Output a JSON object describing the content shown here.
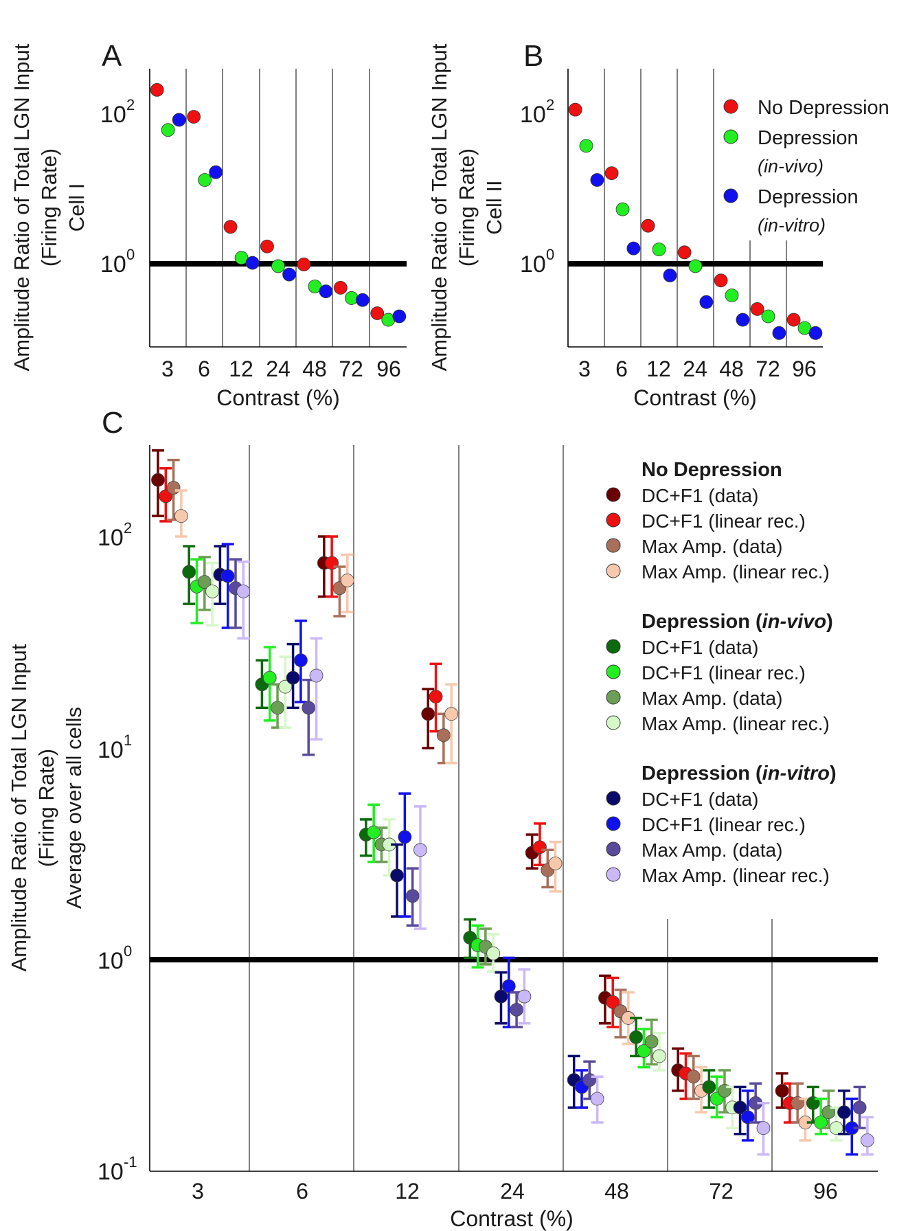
{
  "chart_data": [
    {
      "panel": "A",
      "type": "scatter",
      "ylabel_lines": [
        "Amplitude Ratio of Total LGN Input",
        "(Firing Rate)",
        "Cell I"
      ],
      "xlabel": "Contrast (%)",
      "x_ticks": [
        "3",
        "6",
        "12",
        "24",
        "48",
        "72",
        "96"
      ],
      "y_scale": "log",
      "ylim": [
        0.05,
        200
      ],
      "y_ticks": [
        {
          "exp": "2",
          "value": 100
        },
        {
          "exp": "0",
          "value": 1
        }
      ],
      "reference_line": 1,
      "grid": "vertical separators between contrast groups",
      "series": [
        {
          "name": "No Depression",
          "color": "#ee1111",
          "values": [
            205,
            90,
            3.1,
            1.7,
            0.98,
            0.48,
            0.22
          ]
        },
        {
          "name": "Depression (in-vivo)",
          "color": "#22ee22",
          "values": [
            60,
            13,
            1.2,
            0.93,
            0.5,
            0.35,
            0.18
          ]
        },
        {
          "name": "Depression (in-vitro)",
          "color": "#1111ee",
          "values": [
            82,
            16.5,
            1.03,
            0.72,
            0.43,
            0.33,
            0.2
          ]
        }
      ]
    },
    {
      "panel": "B",
      "type": "scatter",
      "ylabel_lines": [
        "Amplitude Ratio of Total LGN Input",
        "(Firing Rate)",
        "Cell II"
      ],
      "xlabel": "Contrast (%)",
      "x_ticks": [
        "3",
        "6",
        "12",
        "24",
        "48",
        "72",
        "96"
      ],
      "y_scale": "log",
      "ylim": [
        0.05,
        200
      ],
      "y_ticks": [
        {
          "exp": "2",
          "value": 100
        },
        {
          "exp": "0",
          "value": 1
        }
      ],
      "reference_line": 1,
      "grid": "vertical separators between contrast groups",
      "legend": {
        "position": "top-right",
        "entries": [
          {
            "label": "No Depression",
            "color": "#ee1111"
          },
          {
            "label": "Depression",
            "sublabel": "(in-vivo)",
            "color": "#22ee22"
          },
          {
            "label": "Depression",
            "sublabel": "(in-vitro)",
            "color": "#1111ee"
          }
        ]
      },
      "series": [
        {
          "name": "No Depression",
          "color": "#ee1111",
          "values": [
            112,
            16,
            3.2,
            1.42,
            0.6,
            0.25,
            0.18
          ]
        },
        {
          "name": "Depression (in-vivo)",
          "color": "#22ee22",
          "values": [
            37,
            5.3,
            1.55,
            0.93,
            0.38,
            0.2,
            0.14
          ]
        },
        {
          "name": "Depression (in-vitro)",
          "color": "#1111ee",
          "values": [
            13,
            1.6,
            0.7,
            0.31,
            0.18,
            0.12,
            0.12
          ]
        }
      ]
    },
    {
      "panel": "C",
      "type": "scatter",
      "ylabel_lines": [
        "Amplitude Ratio of Total LGN Input",
        "(Firing Rate)",
        "Average over all cells"
      ],
      "xlabel": "Contrast (%)",
      "x_ticks": [
        "3",
        "6",
        "12",
        "24",
        "48",
        "72",
        "96"
      ],
      "y_scale": "log",
      "ylim": [
        0.1,
        300
      ],
      "y_ticks": [
        {
          "exp": "2",
          "value": 100
        },
        {
          "exp": "1",
          "value": 10
        },
        {
          "exp": "0",
          "value": 1
        },
        {
          "exp": "-1",
          "value": 0.1
        }
      ],
      "reference_line": 1,
      "grid": "vertical separators between contrast groups",
      "legend": {
        "position": "top-right",
        "groups": [
          {
            "title": "No Depression",
            "italic": "",
            "items": [
              {
                "label": "DC+F1 (data)",
                "color": "#6a0000"
              },
              {
                "label": "DC+F1 (linear rec.)",
                "color": "#ee1111"
              },
              {
                "label": "Max Amp. (data)",
                "color": "#a8705a"
              },
              {
                "label": "Max Amp. (linear rec.)",
                "color": "#f7c8ac"
              }
            ]
          },
          {
            "title": "Depression (",
            "italic": "in-vivo",
            "close": ")",
            "items": [
              {
                "label": "DC+F1 (data)",
                "color": "#0b6a0b"
              },
              {
                "label": "DC+F1 (linear rec.)",
                "color": "#22ee22"
              },
              {
                "label": "Max Amp. (data)",
                "color": "#6c9e55"
              },
              {
                "label": "Max Amp. (linear rec.)",
                "color": "#d6f7c8"
              }
            ]
          },
          {
            "title": "Depression (",
            "italic": "in-vitro",
            "close": ")",
            "items": [
              {
                "label": "DC+F1 (data)",
                "color": "#0a0a6a"
              },
              {
                "label": "DC+F1 (linear rec.)",
                "color": "#1111ee"
              },
              {
                "label": "Max Amp. (data)",
                "color": "#5a4a9c"
              },
              {
                "label": "Max Amp. (linear rec.)",
                "color": "#cbb8f7"
              }
            ]
          }
        ]
      },
      "series": [
        {
          "name": "No Depression DC+F1 (data)",
          "color": "#6a0000",
          "values": [
            185,
            75,
            14.5,
            3.2,
            0.66,
            0.3,
            0.24
          ],
          "lower": [
            125,
            52,
            10,
            2.7,
            0.5,
            0.24,
            0.2
          ],
          "upper": [
            255,
            100,
            19,
            3.9,
            0.84,
            0.38,
            0.29
          ]
        },
        {
          "name": "No Depression DC+F1 (linear rec.)",
          "color": "#ee1111",
          "values": [
            155,
            75,
            17.5,
            3.4,
            0.63,
            0.29,
            0.21
          ],
          "lower": [
            118,
            52,
            12,
            2.8,
            0.48,
            0.22,
            0.17
          ],
          "upper": [
            210,
            100,
            25,
            4.4,
            0.82,
            0.36,
            0.26
          ]
        },
        {
          "name": "No Depression Max Amp. (data)",
          "color": "#a8705a",
          "values": [
            170,
            57,
            11.5,
            2.65,
            0.57,
            0.28,
            0.21
          ],
          "lower": [
            120,
            42,
            8.5,
            2.2,
            0.43,
            0.22,
            0.17
          ],
          "upper": [
            230,
            72,
            14.5,
            3.3,
            0.72,
            0.35,
            0.26
          ]
        },
        {
          "name": "No Depression Max Amp. (linear rec.)",
          "color": "#f7c8ac",
          "values": [
            125,
            62,
            14.5,
            2.85,
            0.53,
            0.24,
            0.17
          ],
          "lower": [
            100,
            44,
            8.5,
            2.1,
            0.4,
            0.19,
            0.14
          ],
          "upper": [
            165,
            82,
            20,
            3.6,
            0.7,
            0.31,
            0.22
          ]
        },
        {
          "name": "Depression (in-vivo) DC+F1 (data)",
          "color": "#0b6a0b",
          "values": [
            68,
            20,
            3.9,
            1.27,
            0.43,
            0.25,
            0.21
          ],
          "lower": [
            48,
            15.5,
            3.1,
            1.02,
            0.35,
            0.2,
            0.17
          ],
          "upper": [
            90,
            26,
            4.6,
            1.55,
            0.53,
            0.3,
            0.25
          ]
        },
        {
          "name": "Depression (in-vivo) DC+F1 (linear rec.)",
          "color": "#22ee22",
          "values": [
            58,
            21.5,
            4.0,
            1.17,
            0.37,
            0.22,
            0.17
          ],
          "lower": [
            39,
            13.5,
            2.9,
            0.92,
            0.31,
            0.18,
            0.15
          ],
          "upper": [
            78,
            30,
            5.4,
            1.45,
            0.47,
            0.28,
            0.22
          ]
        },
        {
          "name": "Depression (in-vivo) Max Amp. (data)",
          "color": "#6c9e55",
          "values": [
            61,
            15.5,
            3.5,
            1.15,
            0.41,
            0.24,
            0.19
          ],
          "lower": [
            45,
            12.5,
            2.9,
            0.95,
            0.32,
            0.19,
            0.16
          ],
          "upper": [
            80,
            20,
            4.2,
            1.4,
            0.52,
            0.3,
            0.24
          ]
        },
        {
          "name": "Depression (in-vivo) Max Amp. (linear rec.)",
          "color": "#d6f7c8",
          "values": [
            55,
            19.5,
            3.5,
            1.07,
            0.35,
            0.2,
            0.16
          ],
          "lower": [
            38,
            12.5,
            2.5,
            0.88,
            0.3,
            0.16,
            0.14
          ],
          "upper": [
            75,
            27,
            4.6,
            1.32,
            0.45,
            0.25,
            0.2
          ]
        },
        {
          "name": "Depression (in-vitro) DC+F1 (data)",
          "color": "#0a0a6a",
          "values": [
            66,
            21.5,
            2.5,
            0.67,
            0.27,
            0.2,
            0.19
          ],
          "lower": [
            48,
            15.5,
            1.6,
            0.5,
            0.2,
            0.15,
            0.15
          ],
          "upper": [
            90,
            31,
            3.5,
            0.87,
            0.35,
            0.25,
            0.24
          ]
        },
        {
          "name": "Depression (in-vitro) DC+F1 (linear rec.)",
          "color": "#1111ee",
          "values": [
            65,
            26,
            3.8,
            0.75,
            0.25,
            0.18,
            0.16
          ],
          "lower": [
            37,
            16.5,
            1.6,
            0.48,
            0.2,
            0.14,
            0.12
          ],
          "upper": [
            92,
            40,
            6.1,
            1.02,
            0.3,
            0.24,
            0.22
          ]
        },
        {
          "name": "Depression (in-vitro) Max Amp. (data)",
          "color": "#5a4a9c",
          "values": [
            57,
            15.5,
            2.0,
            0.58,
            0.27,
            0.21,
            0.2
          ],
          "lower": [
            37,
            9.3,
            1.45,
            0.48,
            0.22,
            0.17,
            0.16
          ],
          "upper": [
            78,
            21,
            2.7,
            0.7,
            0.33,
            0.26,
            0.25
          ]
        },
        {
          "name": "Depression (in-vitro) Max Amp. (linear rec.)",
          "color": "#cbb8f7",
          "values": [
            55,
            22,
            3.3,
            0.67,
            0.22,
            0.16,
            0.14
          ],
          "lower": [
            33,
            11,
            1.4,
            0.5,
            0.17,
            0.12,
            0.12
          ],
          "upper": [
            76,
            33,
            5.3,
            0.9,
            0.28,
            0.21,
            0.18
          ]
        }
      ]
    }
  ]
}
